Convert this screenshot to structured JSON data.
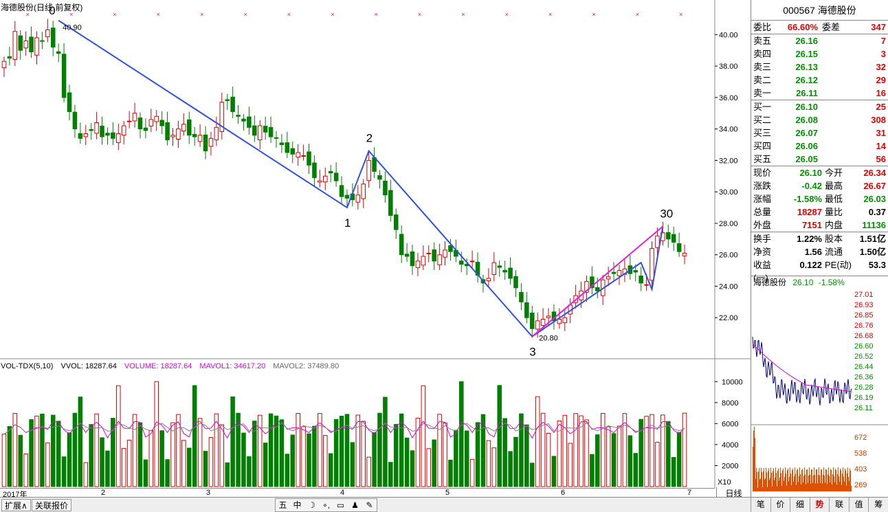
{
  "window": {
    "title": "海德股份(日线,前复权)",
    "period": "日线",
    "x10": "X10"
  },
  "price_axis": [
    "40.00",
    "38.00",
    "36.00",
    "34.00",
    "32.00",
    "30.00",
    "28.00",
    "26.00",
    "24.00",
    "22.00"
  ],
  "annotations": {
    "high_label": "40.90",
    "low_label": "20.80",
    "wave_labels": [
      "0",
      "1",
      "2",
      "3",
      "30"
    ]
  },
  "volume_legend": {
    "name": "VOL-TDX(5,10)",
    "vvol": "VVOL: 18287.64",
    "volume": "VOLUME: 18287.64",
    "mavol1": "MAVOL1: 34617.20",
    "mavol2": "MAVOL2: 37489.80"
  },
  "volume_axis": [
    "10000",
    "8000",
    "6000",
    "4000",
    "2000"
  ],
  "date_labels": [
    "2017年",
    "2",
    "3",
    "4",
    "5",
    "6",
    "7"
  ],
  "quote": {
    "code_name": "000567 海德股份",
    "weibi_label": "委比",
    "weibi": "66.60%",
    "weicha_label": "委差",
    "weicha": "347",
    "asks": [
      [
        "卖五",
        "26.16",
        "7"
      ],
      [
        "卖四",
        "26.15",
        "3"
      ],
      [
        "卖三",
        "26.13",
        "32"
      ],
      [
        "卖二",
        "26.12",
        "29"
      ],
      [
        "卖一",
        "26.11",
        "16"
      ]
    ],
    "bids": [
      [
        "买一",
        "26.10",
        "25"
      ],
      [
        "买二",
        "26.08",
        "308"
      ],
      [
        "买三",
        "26.07",
        "31"
      ],
      [
        "买四",
        "26.06",
        "14"
      ],
      [
        "买五",
        "26.05",
        "56"
      ]
    ],
    "stats": [
      [
        "现价",
        "26.10",
        "今开",
        "26.34"
      ],
      [
        "涨跌",
        "-0.42",
        "最高",
        "26.67"
      ],
      [
        "涨幅",
        "-1.58%",
        "最低",
        "26.03"
      ],
      [
        "总量",
        "18287",
        "量比",
        "0.37"
      ],
      [
        "外盘",
        "7151",
        "内盘",
        "11136"
      ]
    ],
    "fund": [
      [
        "换手",
        "1.22%",
        "股本",
        "1.51亿"
      ],
      [
        "净资",
        "1.56",
        "流通",
        "1.50亿"
      ],
      [
        "收益(一)",
        "0.122",
        "PE(动)",
        "53.3"
      ]
    ]
  },
  "mini": {
    "name": "海德股份",
    "price": "26.10",
    "change": "-1.58%",
    "price_axis": [
      "27.01",
      "26.93",
      "26.85",
      "26.76",
      "26.68",
      "26.60",
      "26.52",
      "26.44",
      "26.36",
      "26.28",
      "26.19",
      "26.11"
    ],
    "vol_axis": [
      "672",
      "538",
      "403",
      "269",
      "134"
    ]
  },
  "bottom": {
    "expand": "扩展∧",
    "related": "关联报价",
    "tools": [
      "五",
      "中",
      "☽",
      "∘,",
      "▭",
      "♟",
      "✎"
    ]
  },
  "tabs": [
    "笔",
    "价",
    "细",
    "势",
    "联",
    "值",
    "筹"
  ],
  "colors": {
    "up": "#e00000",
    "down": "#008000",
    "ma1": "#e000e0",
    "ma2": "#808080",
    "trend": "#3050e0",
    "pink": "#e020e0"
  },
  "chart_data": {
    "type": "candlestick",
    "closes": [
      38.3,
      38.5,
      40.2,
      39.0,
      39.6,
      38.9,
      39.8,
      39.6,
      40.3,
      39.2,
      38.8,
      36.0,
      35.1,
      34.0,
      33.4,
      33.7,
      33.9,
      34.4,
      33.5,
      33.6,
      33.4,
      33.7,
      34.2,
      34.5,
      35.0,
      34.0,
      33.9,
      34.6,
      34.8,
      34.2,
      33.3,
      33.6,
      34.0,
      34.3,
      33.6,
      33.5,
      33.6,
      32.6,
      33.4,
      34.1,
      35.7,
      35.8,
      35.1,
      34.8,
      34.5,
      34.1,
      33.6,
      34.2,
      33.8,
      33.5,
      33.4,
      33.0,
      32.5,
      32.4,
      32.5,
      32.3,
      31.7,
      30.9,
      30.7,
      31.0,
      31.2,
      30.7,
      29.7,
      29.6,
      29.5,
      29.8,
      30.5,
      32.0,
      31.3,
      30.8,
      29.8,
      28.5,
      27.6,
      26.0,
      25.9,
      25.3,
      25.6,
      25.9,
      26.1,
      25.6,
      26.0,
      26.3,
      26.2,
      25.9,
      25.4,
      25.3,
      25.6,
      24.7,
      24.2,
      24.5,
      25.5,
      25.2,
      24.9,
      24.5,
      23.9,
      23.0,
      22.0,
      21.3,
      21.8,
      21.9,
      22.1,
      21.8,
      21.9,
      22.0,
      22.8,
      23.4,
      23.7,
      24.3,
      23.9,
      23.7,
      24.4,
      24.6,
      24.8,
      25.0,
      25.1,
      24.8,
      24.9,
      24.2,
      24.1,
      26.4,
      27.2,
      27.4,
      27.0,
      26.8,
      26.2,
      26.1
    ]
  }
}
